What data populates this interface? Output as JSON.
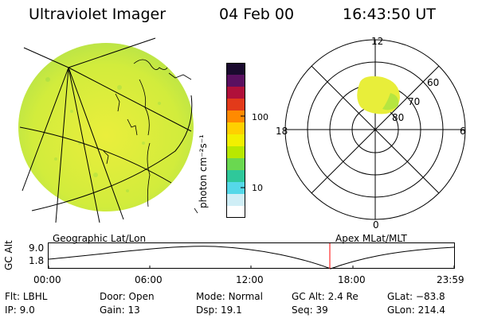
{
  "header": {
    "instrument": "Ultraviolet Imager",
    "date": "04 Feb 00",
    "time": "16:43:50 UT"
  },
  "colorbar": {
    "unit_label": "photon cm⁻²s⁻¹",
    "ticks": [
      "100",
      "10"
    ],
    "colors": [
      "#1a0a2e",
      "#5a1060",
      "#b0103a",
      "#e23a1a",
      "#ff8a00",
      "#ffd000",
      "#f2f000",
      "#b8e800",
      "#6ad850",
      "#2fc89a",
      "#55d8e8",
      "#cfeef6",
      "#ffffff"
    ]
  },
  "polar_plot": {
    "mlt_labels": {
      "top": "12",
      "left": "18",
      "right": "6",
      "bottom": "0"
    },
    "lat_labels": [
      "60",
      "70",
      "80"
    ]
  },
  "timeline": {
    "left_title": "Geographic Lat/Lon",
    "right_title": "Apex MLat/MLT",
    "y_label": "GC Alt",
    "y_ticks": [
      "9.0",
      "1.8"
    ],
    "x_ticks": [
      "00:00",
      "06:00",
      "12:00",
      "18:00",
      "23:59"
    ],
    "marker_color": "#ff0000"
  },
  "info": {
    "filter": {
      "label": "Flt:",
      "value": "LBHL"
    },
    "ip": {
      "label": "IP:",
      "value": "9.0"
    },
    "door": {
      "label": "Door:",
      "value": "Open"
    },
    "gain": {
      "label": "Gain:",
      "value": "13"
    },
    "mode": {
      "label": "Mode:",
      "value": "Normal"
    },
    "dsp": {
      "label": "Dsp:",
      "value": "19.1"
    },
    "gc_alt": {
      "label": "GC Alt:",
      "value": "2.4 Re"
    },
    "seq": {
      "label": "Seq:",
      "value": "39"
    },
    "glat": {
      "label": "GLat:",
      "value": "−83.8"
    },
    "glon": {
      "label": "GLon:",
      "value": "214.4"
    }
  }
}
